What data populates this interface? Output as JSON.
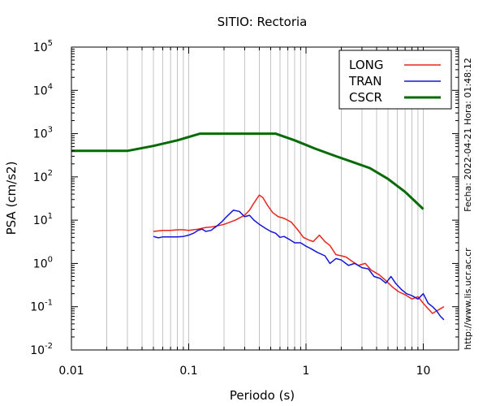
{
  "chart_data": {
    "type": "line",
    "title": "SITIO: Rectoria",
    "xlabel": "Periodo (s)",
    "ylabel": "PSA (cm/s2)",
    "xscale": "log",
    "yscale": "log",
    "xlim": [
      0.01,
      20
    ],
    "ylim": [
      0.01,
      100000
    ],
    "grid": "vertical",
    "legend_position": "top-right",
    "x_ticks": [
      {
        "value": 0.01,
        "label": "0.01"
      },
      {
        "value": 0.1,
        "label": "0.1"
      },
      {
        "value": 1,
        "label": "1"
      },
      {
        "value": 10,
        "label": "10"
      }
    ],
    "y_ticks": [
      {
        "value": 0.01,
        "base": "10",
        "exp": "-2"
      },
      {
        "value": 0.1,
        "base": "10",
        "exp": "-1"
      },
      {
        "value": 1,
        "base": "10",
        "exp": "0"
      },
      {
        "value": 10,
        "base": "10",
        "exp": "1"
      },
      {
        "value": 100,
        "base": "10",
        "exp": "2"
      },
      {
        "value": 1000,
        "base": "10",
        "exp": "3"
      },
      {
        "value": 10000,
        "base": "10",
        "exp": "4"
      },
      {
        "value": 100000,
        "base": "10",
        "exp": "5"
      }
    ],
    "series": [
      {
        "name": "LONG",
        "color": "#e8251f",
        "width": 1.5,
        "points": [
          [
            0.05,
            5.5
          ],
          [
            0.06,
            5.8
          ],
          [
            0.07,
            5.8
          ],
          [
            0.08,
            6.0
          ],
          [
            0.09,
            6.0
          ],
          [
            0.1,
            5.8
          ],
          [
            0.12,
            6.2
          ],
          [
            0.14,
            6.8
          ],
          [
            0.16,
            7.0
          ],
          [
            0.18,
            7.5
          ],
          [
            0.2,
            8.0
          ],
          [
            0.25,
            10.0
          ],
          [
            0.3,
            13.0
          ],
          [
            0.33,
            17.0
          ],
          [
            0.36,
            25.0
          ],
          [
            0.4,
            38.0
          ],
          [
            0.43,
            33.0
          ],
          [
            0.47,
            22.0
          ],
          [
            0.52,
            15.0
          ],
          [
            0.58,
            12.0
          ],
          [
            0.65,
            11.0
          ],
          [
            0.75,
            9.0
          ],
          [
            0.85,
            6.0
          ],
          [
            0.95,
            4.0
          ],
          [
            1.05,
            3.5
          ],
          [
            1.15,
            3.2
          ],
          [
            1.3,
            4.5
          ],
          [
            1.45,
            3.2
          ],
          [
            1.6,
            2.6
          ],
          [
            1.8,
            1.6
          ],
          [
            2.0,
            1.5
          ],
          [
            2.2,
            1.4
          ],
          [
            2.5,
            1.1
          ],
          [
            2.8,
            0.9
          ],
          [
            3.2,
            1.0
          ],
          [
            3.6,
            0.7
          ],
          [
            4.2,
            0.55
          ],
          [
            4.8,
            0.4
          ],
          [
            5.5,
            0.28
          ],
          [
            6.2,
            0.22
          ],
          [
            7.0,
            0.19
          ],
          [
            8.0,
            0.15
          ],
          [
            9.0,
            0.17
          ],
          [
            10.0,
            0.12
          ],
          [
            11.0,
            0.09
          ],
          [
            12.0,
            0.07
          ],
          [
            13.0,
            0.08
          ],
          [
            14.0,
            0.09
          ],
          [
            15.0,
            0.1
          ]
        ]
      },
      {
        "name": "TRAN",
        "color": "#1515d6",
        "width": 1.5,
        "points": [
          [
            0.05,
            4.2
          ],
          [
            0.055,
            3.9
          ],
          [
            0.06,
            4.1
          ],
          [
            0.07,
            4.1
          ],
          [
            0.08,
            4.1
          ],
          [
            0.09,
            4.2
          ],
          [
            0.1,
            4.5
          ],
          [
            0.11,
            5.0
          ],
          [
            0.12,
            5.8
          ],
          [
            0.13,
            6.2
          ],
          [
            0.14,
            5.5
          ],
          [
            0.155,
            5.8
          ],
          [
            0.17,
            7.0
          ],
          [
            0.19,
            9.0
          ],
          [
            0.21,
            12.0
          ],
          [
            0.24,
            17.0
          ],
          [
            0.27,
            16.0
          ],
          [
            0.3,
            12.0
          ],
          [
            0.33,
            13.0
          ],
          [
            0.36,
            10.0
          ],
          [
            0.4,
            8.0
          ],
          [
            0.45,
            6.5
          ],
          [
            0.5,
            5.5
          ],
          [
            0.55,
            5.0
          ],
          [
            0.6,
            4.0
          ],
          [
            0.65,
            4.2
          ],
          [
            0.72,
            3.6
          ],
          [
            0.8,
            3.0
          ],
          [
            0.9,
            3.0
          ],
          [
            1.0,
            2.5
          ],
          [
            1.1,
            2.2
          ],
          [
            1.25,
            1.8
          ],
          [
            1.45,
            1.5
          ],
          [
            1.6,
            1.0
          ],
          [
            1.8,
            1.3
          ],
          [
            2.0,
            1.2
          ],
          [
            2.3,
            0.9
          ],
          [
            2.6,
            1.0
          ],
          [
            3.0,
            0.8
          ],
          [
            3.4,
            0.75
          ],
          [
            3.8,
            0.5
          ],
          [
            4.3,
            0.45
          ],
          [
            4.8,
            0.35
          ],
          [
            5.3,
            0.5
          ],
          [
            5.8,
            0.35
          ],
          [
            6.5,
            0.25
          ],
          [
            7.2,
            0.2
          ],
          [
            8.0,
            0.18
          ],
          [
            9.0,
            0.15
          ],
          [
            10.0,
            0.2
          ],
          [
            11.0,
            0.12
          ],
          [
            12.0,
            0.1
          ],
          [
            13.0,
            0.08
          ],
          [
            14.0,
            0.06
          ],
          [
            15.0,
            0.05
          ]
        ]
      },
      {
        "name": "CSCR",
        "color": "#066b06",
        "width": 3,
        "points": [
          [
            0.01,
            400
          ],
          [
            0.03,
            400
          ],
          [
            0.05,
            520
          ],
          [
            0.08,
            700
          ],
          [
            0.125,
            1000
          ],
          [
            0.55,
            1000
          ],
          [
            0.8,
            700
          ],
          [
            1.2,
            450
          ],
          [
            1.8,
            300
          ],
          [
            2.5,
            220
          ],
          [
            3.5,
            160
          ],
          [
            5.0,
            90
          ],
          [
            7.0,
            45
          ],
          [
            10.0,
            18
          ]
        ]
      }
    ]
  },
  "side_notes": {
    "timestamp": "Fecha: 2022-04-21 Hora: 01:48:12",
    "website": "http://www.lis.ucr.ac.cr"
  }
}
